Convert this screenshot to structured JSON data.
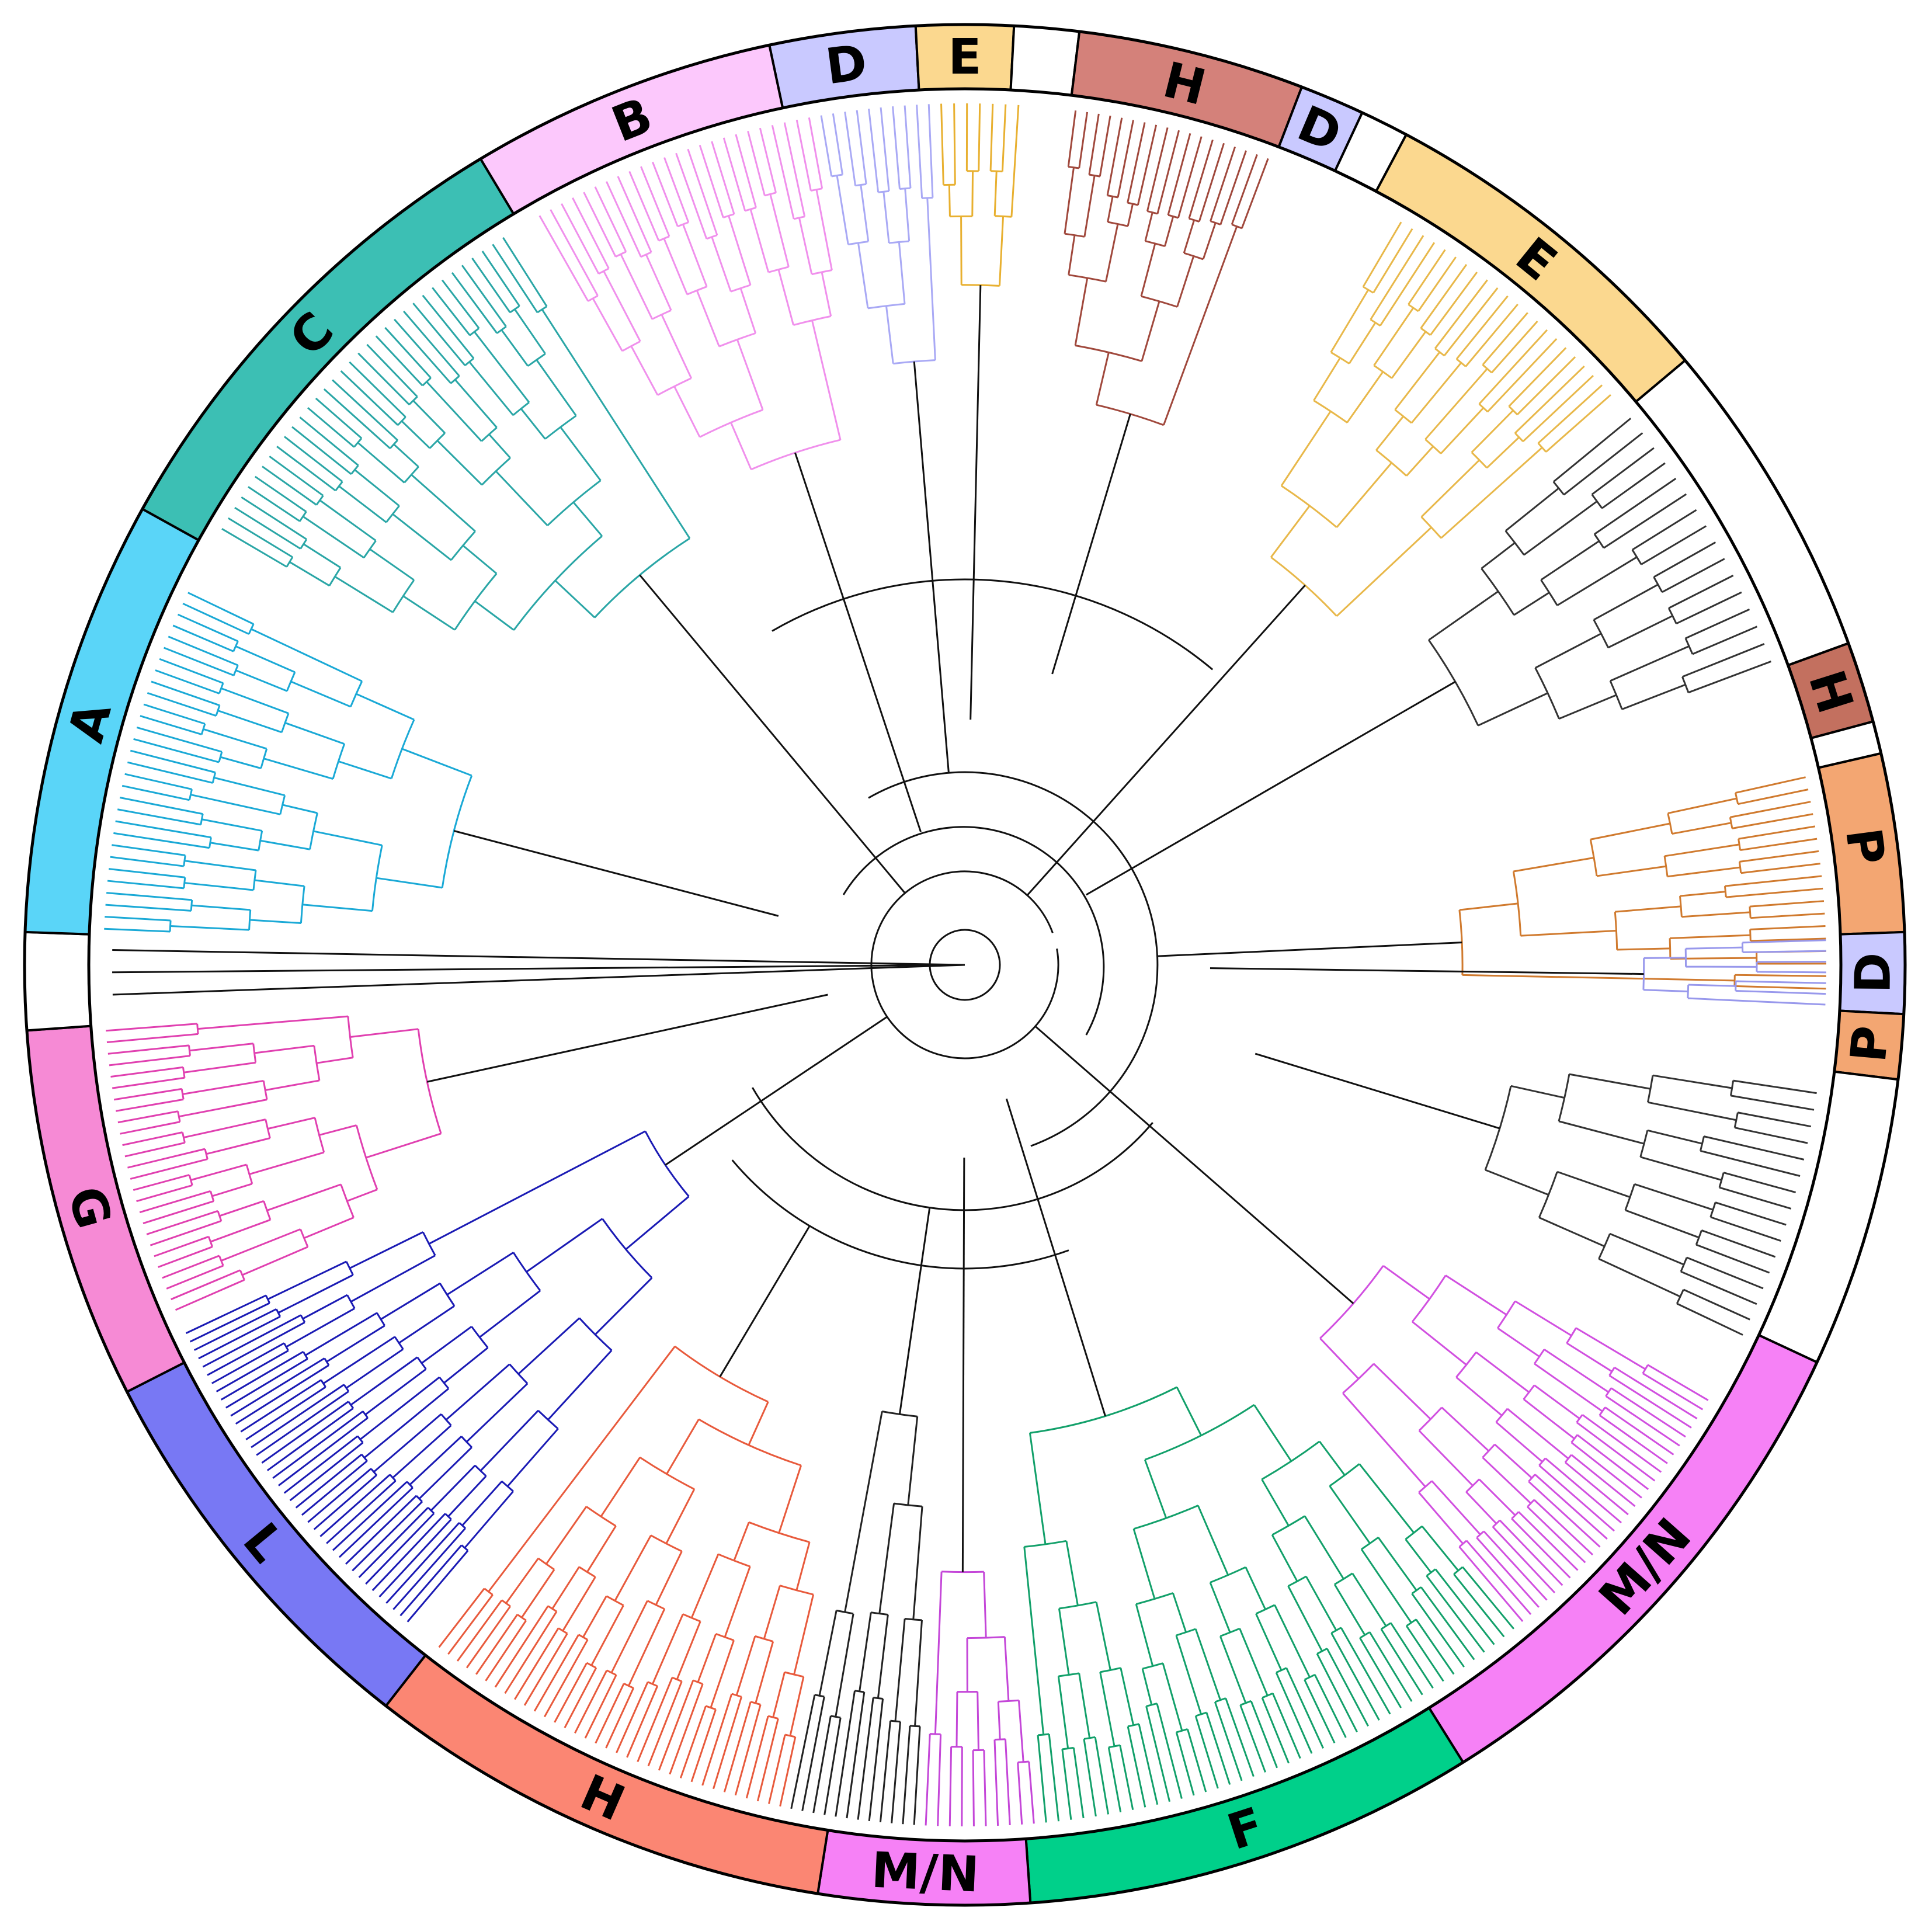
{
  "figure": {
    "type": "circular phylogenetic tree",
    "outer_ring_color": "#000000"
  },
  "segments": [
    {
      "label": "D",
      "color": "#c9c9ff",
      "start": -12,
      "end": -3
    },
    {
      "label": "E",
      "color": "#fbd88f",
      "start": -3,
      "end": 3
    },
    {
      "label": "",
      "color": "#ffffff",
      "start": 3,
      "end": 7
    },
    {
      "label": "H",
      "color": "#d4817a",
      "start": 7,
      "end": 21
    },
    {
      "label": "D",
      "color": "#c9c9ff",
      "start": 21,
      "end": 25
    },
    {
      "label": "",
      "color": "#ffffff",
      "start": 25,
      "end": 28
    },
    {
      "label": "E",
      "color": "#fbd88f",
      "start": 28,
      "end": 50
    },
    {
      "label": "",
      "color": "#ffffff",
      "start": 50,
      "end": 70
    },
    {
      "label": "H",
      "color": "#c3705f",
      "start": 70,
      "end": 75
    },
    {
      "label": "",
      "color": "#ffffff",
      "start": 75,
      "end": 77
    },
    {
      "label": "P",
      "color": "#f3a672",
      "start": 77,
      "end": 88
    },
    {
      "label": "D",
      "color": "#c9c9ff",
      "start": 88,
      "end": 93
    },
    {
      "label": "P",
      "color": "#f3a672",
      "start": 93,
      "end": 97
    },
    {
      "label": "",
      "color": "#ffffff",
      "start": 97,
      "end": 115
    },
    {
      "label": "M/N",
      "color": "#f681f6",
      "start": 115,
      "end": 148
    },
    {
      "label": "F",
      "color": "#00d08a",
      "start": 148,
      "end": 176
    },
    {
      "label": "M/N",
      "color": "#f681f6",
      "start": 176,
      "end": 189
    },
    {
      "label": "H",
      "color": "#fb8673",
      "start": 189,
      "end": 218
    },
    {
      "label": "L",
      "color": "#7878f4",
      "start": 218,
      "end": 243
    },
    {
      "label": "G",
      "color": "#f68ad5",
      "start": 243,
      "end": 266
    },
    {
      "label": "",
      "color": "#ffffff",
      "start": 266,
      "end": 272
    },
    {
      "label": "A",
      "color": "#5ad5f8",
      "start": 272,
      "end": 299
    },
    {
      "label": "C",
      "color": "#3cbfb4",
      "start": 299,
      "end": 329
    },
    {
      "label": "B",
      "color": "#fcc8fc",
      "start": 329,
      "end": 348
    }
  ],
  "clades": [
    {
      "color": "#2aa6a6",
      "start": 300,
      "end": 328,
      "root_radius": 780,
      "count": 34
    },
    {
      "color": "#f090ec",
      "start": 330,
      "end": 350,
      "root_radius": 820,
      "count": 24
    },
    {
      "color": "#a9a9f5",
      "start": 350,
      "end": 358,
      "root_radius": 960,
      "count": 10
    },
    {
      "color": "#e8b030",
      "start": 358,
      "end": 364,
      "root_radius": 1120,
      "count": 7
    },
    {
      "color": "#a0483c",
      "start": 367,
      "end": 381,
      "root_radius": 940,
      "count": 18
    },
    {
      "color": "#e8b84a",
      "start": 390,
      "end": 409,
      "root_radius": 800,
      "count": 22
    },
    {
      "color": "#333333",
      "start": 410,
      "end": 430,
      "root_radius": 880,
      "count": 16
    },
    {
      "color": "#d07a2e",
      "start": 437,
      "end": 452,
      "root_radius": 760,
      "count": 18
    },
    {
      "color": "#9898ec",
      "start": 448,
      "end": 453,
      "root_radius": 1080,
      "count": 7
    },
    {
      "color": "#333333",
      "start": 458,
      "end": 476,
      "root_radius": 860,
      "count": 16
    },
    {
      "color": "#d150e0",
      "start": 480,
      "end": 500,
      "root_radius": 800,
      "count": 28
    },
    {
      "color": "#12a06a",
      "start": 500,
      "end": 535,
      "root_radius": 700,
      "count": 42
    },
    {
      "color": "#c446d8",
      "start": 535,
      "end": 543,
      "root_radius": 960,
      "count": 10
    },
    {
      "color": "#222222",
      "start": 543,
      "end": 552,
      "root_radius": 640,
      "count": 12
    },
    {
      "color": "#e85a3c",
      "start": 552,
      "end": 578,
      "root_radius": 720,
      "count": 34
    },
    {
      "color": "#1a1ab4",
      "start": 580,
      "end": 605,
      "root_radius": 520,
      "count": 40
    },
    {
      "color": "#e040b0",
      "start": 606,
      "end": 626,
      "root_radius": 880,
      "count": 26
    },
    {
      "color": "#1aa9d6",
      "start": 632,
      "end": 656,
      "root_radius": 820,
      "count": 30
    }
  ]
}
